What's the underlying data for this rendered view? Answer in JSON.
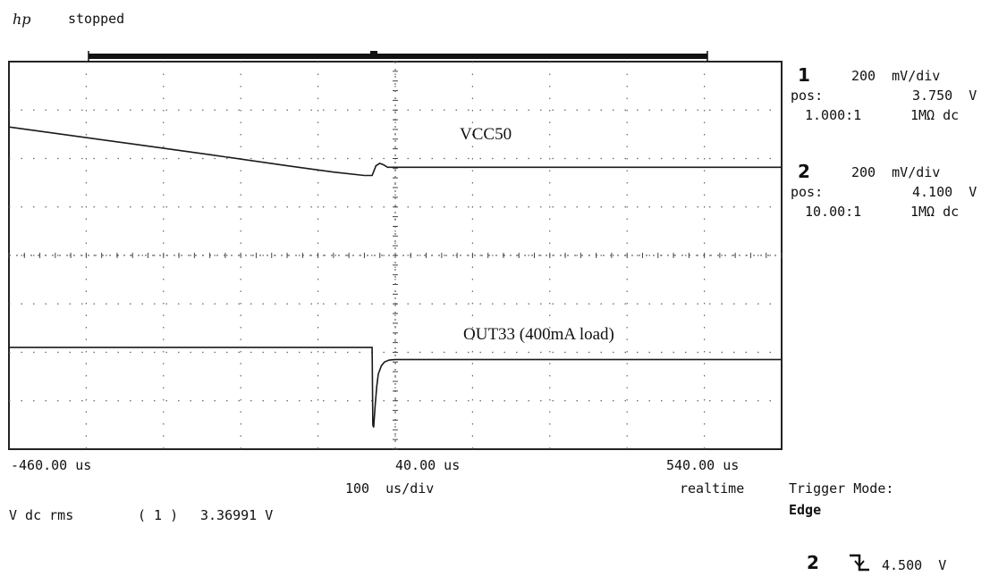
{
  "header": {
    "logo": "hp",
    "status": "stopped"
  },
  "channels": [
    {
      "number": "1",
      "scale": "200  mV/div",
      "pos_label": "pos:",
      "pos_value": "3.750  V",
      "probe": "1.000:1",
      "coupling": "1MΩ dc"
    },
    {
      "number": "2",
      "scale": "200  mV/div",
      "pos_label": "pos:",
      "pos_value": "4.100  V",
      "probe": "10.00:1",
      "coupling": "1MΩ dc"
    }
  ],
  "time_axis": {
    "left_label": "-460.00 us",
    "center_label": "40.00 us",
    "right_label": "540.00 us",
    "per_div": "100  us/div",
    "mode": "realtime"
  },
  "measurement": {
    "name": "V dc rms",
    "channel": "( 1 )",
    "value": "3.36991 V"
  },
  "trigger": {
    "title": "Trigger Mode:",
    "mode": "Edge",
    "source": "2",
    "slope_icon": "falling-edge-icon",
    "level": "4.500  V"
  },
  "chart_data": {
    "type": "line",
    "x_unit": "us",
    "xlim": [
      -460,
      540
    ],
    "ylim_divisions": [
      0,
      8
    ],
    "series": [
      {
        "name": "VCC50",
        "x": [
          -460,
          -400,
          -300,
          -200,
          -100,
          -40,
          0,
          10,
          15,
          20,
          25,
          30,
          40,
          100,
          200,
          300,
          400,
          540
        ],
        "y": [
          6.65,
          6.52,
          6.3,
          6.08,
          5.85,
          5.72,
          5.65,
          5.65,
          5.85,
          5.9,
          5.87,
          5.82,
          5.82,
          5.82,
          5.82,
          5.82,
          5.82,
          5.82
        ]
      },
      {
        "name": "OUT33 (400mA load)",
        "x": [
          -460,
          -300,
          -100,
          0,
          10,
          11,
          12,
          14,
          16,
          18,
          22,
          26,
          32,
          40,
          100,
          200,
          300,
          400,
          540
        ],
        "y": [
          2.1,
          2.1,
          2.1,
          2.1,
          2.1,
          0.5,
          0.45,
          0.9,
          1.3,
          1.55,
          1.72,
          1.8,
          1.84,
          1.85,
          1.85,
          1.85,
          1.85,
          1.85,
          1.85
        ]
      }
    ]
  }
}
